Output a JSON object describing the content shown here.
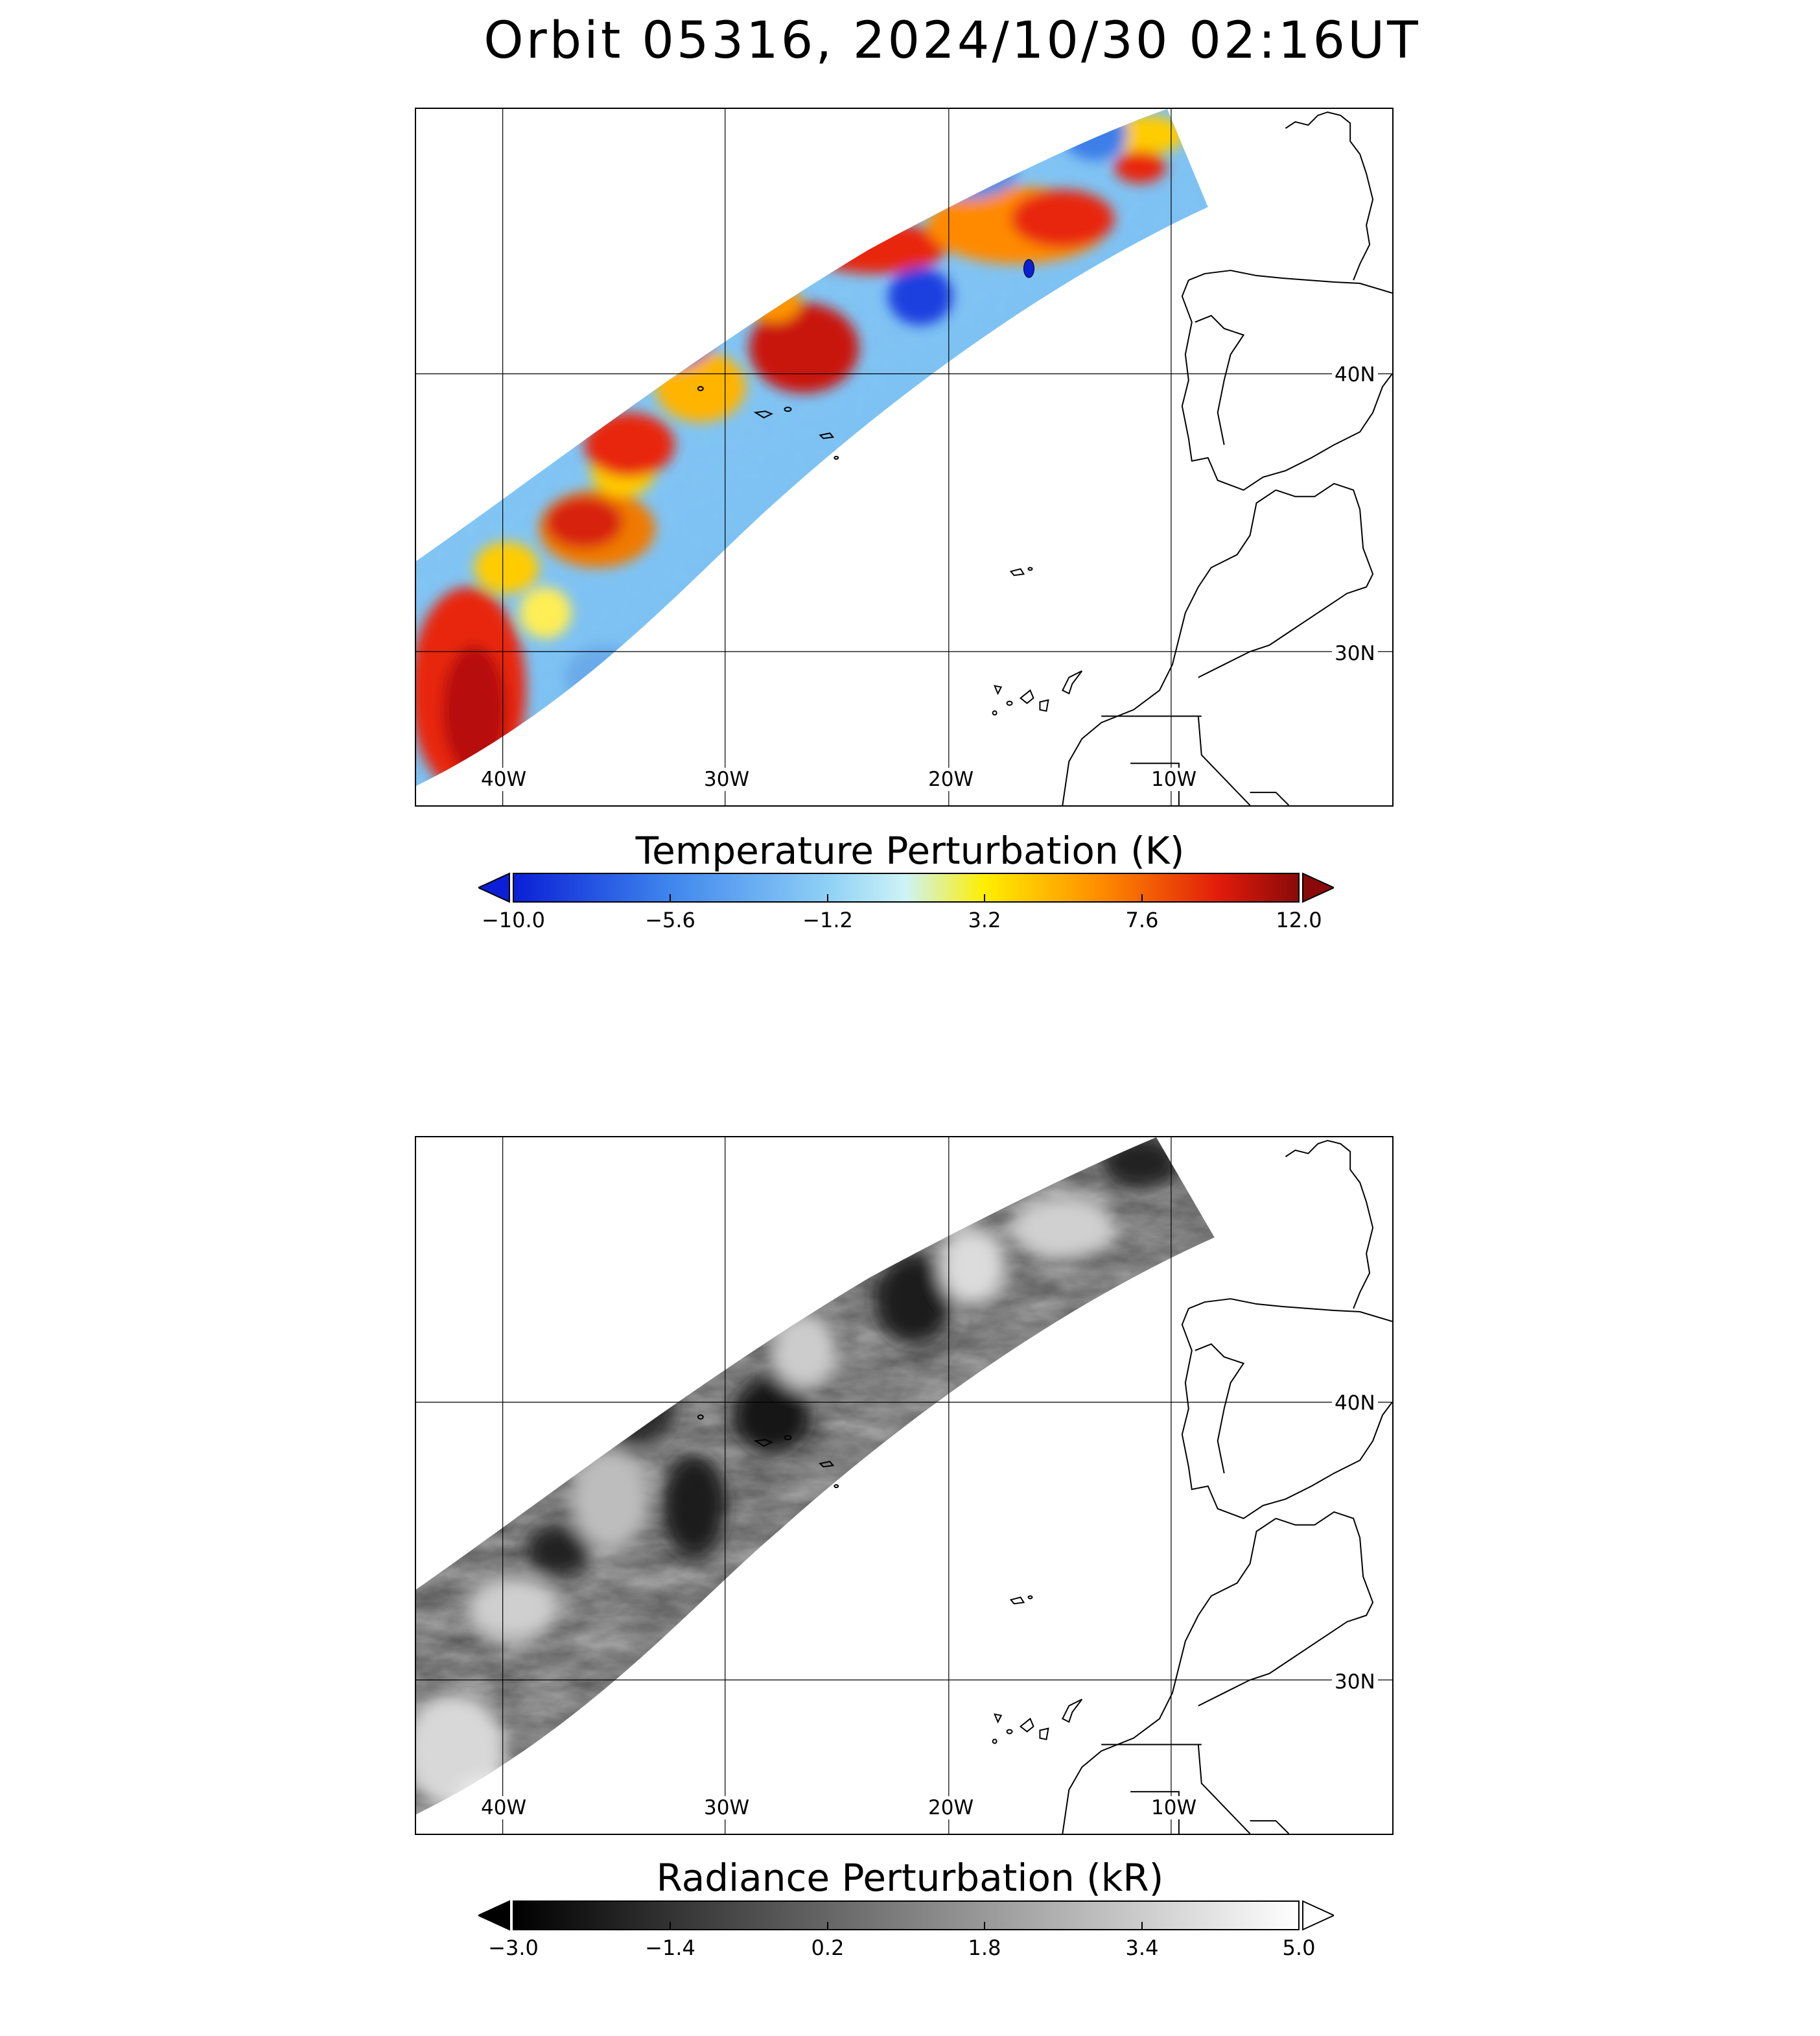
{
  "title": "Orbit 05316, 2024/10/30 02:16UT",
  "grid_labels": {
    "lon": [
      "40W",
      "30W",
      "20W",
      "10W"
    ],
    "lat": [
      "40N",
      "30N"
    ]
  },
  "panels": [
    {
      "name": "temperature",
      "colorbar_title": "Temperature Perturbation (K)",
      "ticks": [
        "−10.0",
        "−5.6",
        "−1.2",
        "3.2",
        "7.6",
        "12.0"
      ],
      "colors": [
        "#0a1fd6",
        "#3f86ee",
        "#8fd0f6",
        "#cdf3f6",
        "#ffee00",
        "#ff8a00",
        "#e11b0b",
        "#8a0a0a"
      ]
    },
    {
      "name": "radiance",
      "colorbar_title": "Radiance Perturbation (kR)",
      "ticks": [
        "−3.0",
        "−1.4",
        "0.2",
        "1.8",
        "3.4",
        "5.0"
      ],
      "colors": [
        "#000000",
        "#ffffff"
      ]
    }
  ]
}
